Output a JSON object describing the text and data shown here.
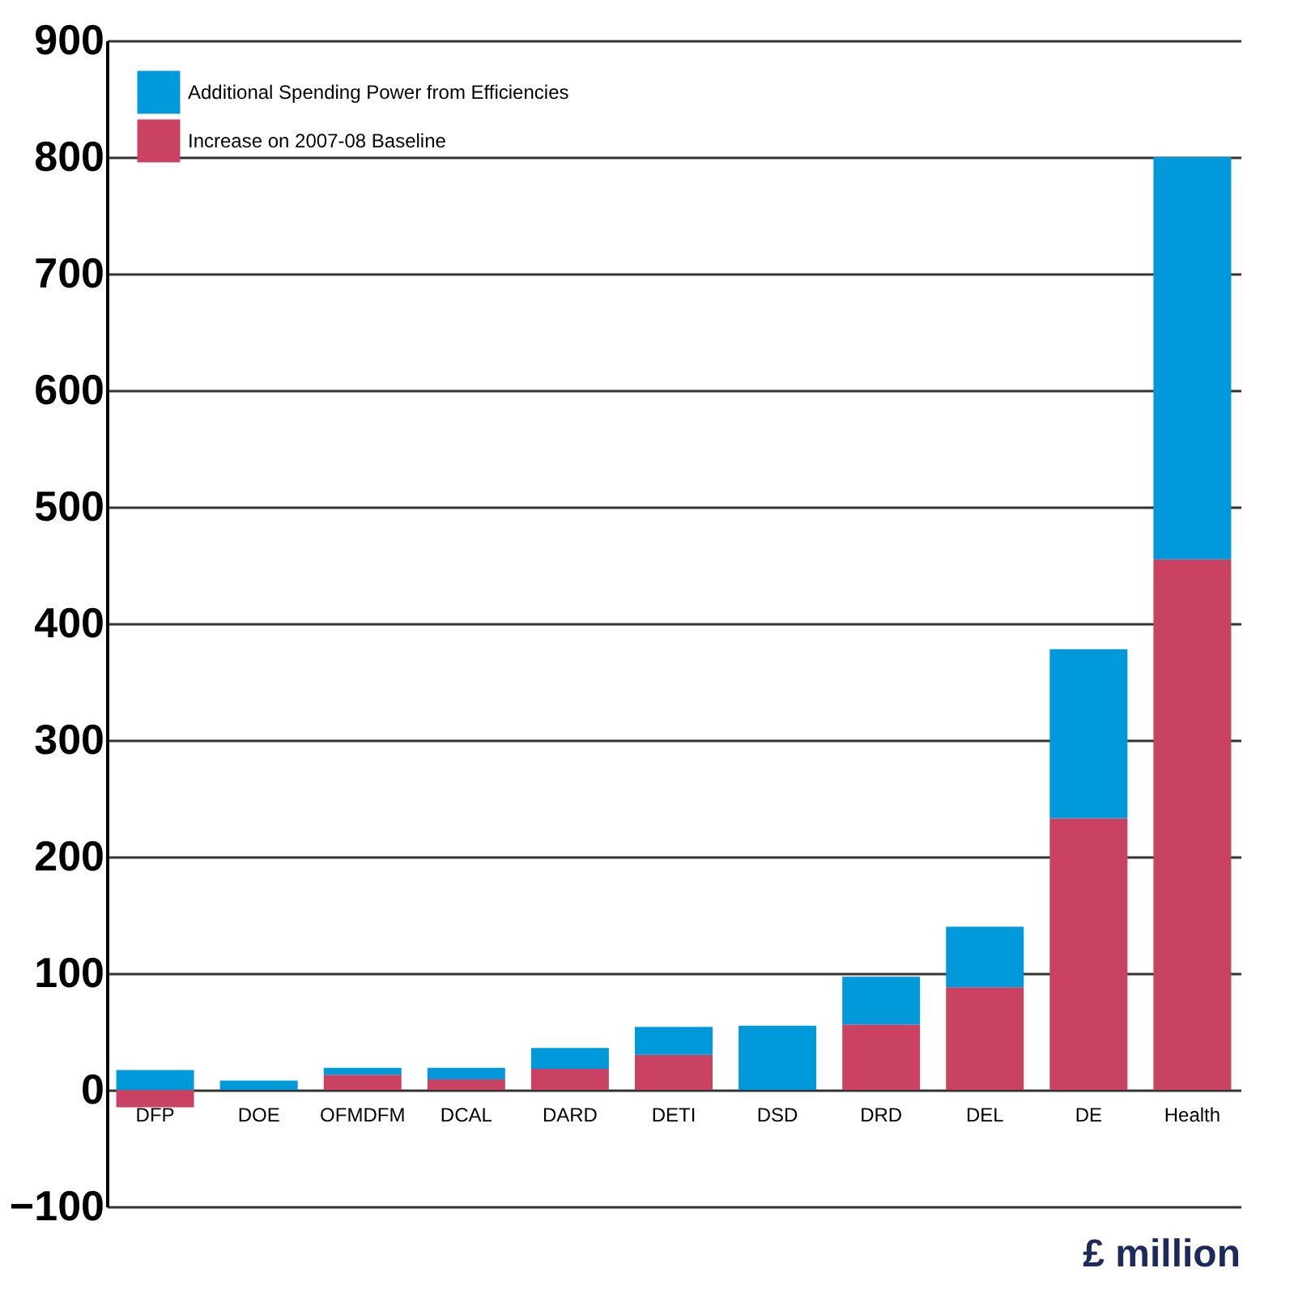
{
  "chart_data": {
    "type": "bar",
    "stacked": true,
    "categories": [
      "DFP",
      "DOE",
      "OFMDFM",
      "DCAL",
      "DARD",
      "DETI",
      "DSD",
      "DRD",
      "DEL",
      "DE",
      "Health"
    ],
    "series": [
      {
        "name": "Increase on 2007-08 Baseline",
        "color": "#c94262",
        "values": [
          -15,
          0,
          13,
          9,
          18,
          30,
          0,
          56,
          88,
          233,
          455
        ]
      },
      {
        "name": "Additional Spending Power from Efficiencies",
        "color": "#0099d9",
        "values": [
          17,
          8,
          6,
          10,
          18,
          24,
          55,
          41,
          52,
          145,
          345
        ]
      }
    ],
    "ylim": [
      -100,
      900
    ],
    "yticks": [
      -100,
      0,
      100,
      200,
      300,
      400,
      500,
      600,
      700,
      800,
      900
    ],
    "grid": "y",
    "legend": "top left",
    "annotations": [
      "£ million"
    ]
  }
}
